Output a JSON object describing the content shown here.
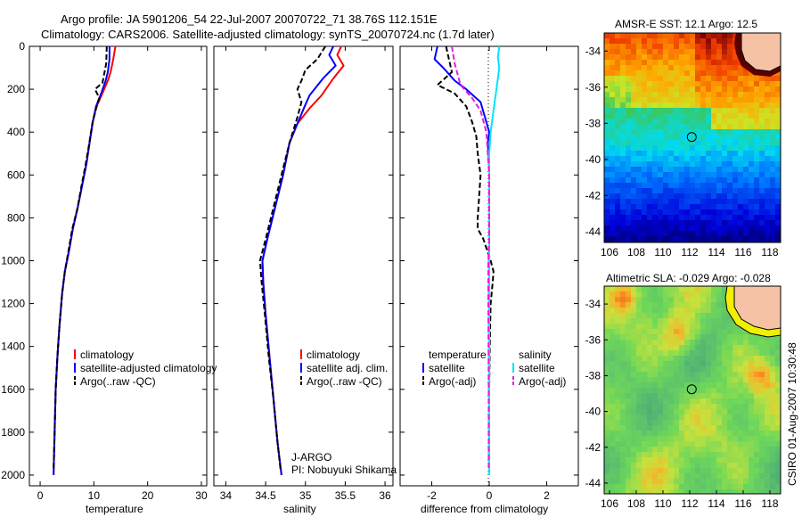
{
  "header": {
    "line1": "Argo profile: JA 5901206_54 22-Jul-2007 20070722_71 38.76S 112.151E",
    "line2": "Climatology: CARS2006. Satellite-adjusted climatology: synTS_20070724.nc (1.7d later)"
  },
  "side_text": "CSIRO 01-Aug-2007 10:30:48",
  "colors": {
    "clim": "#ff0000",
    "sat": "#0000ff",
    "argo": "#000000",
    "cyan": "#00e5ff",
    "magenta": "#e020e0",
    "land": "#f5c2a5"
  },
  "chart_data": [
    {
      "type": "line",
      "id": "temperature",
      "xlabel": "temperature",
      "xlim": [
        -2,
        31
      ],
      "ylim": [
        2050,
        0
      ],
      "xticks": [
        "0",
        "10",
        "20",
        "30"
      ],
      "xtick_values": [
        0,
        10,
        20,
        30
      ],
      "yticks": [
        "0",
        "200",
        "400",
        "600",
        "800",
        "1000",
        "1200",
        "1400",
        "1600",
        "1800",
        "2000"
      ],
      "ytick_values": [
        0,
        200,
        400,
        600,
        800,
        1000,
        1200,
        1400,
        1600,
        1800,
        2000
      ],
      "legend": [
        "climatology",
        "satellite-adjusted climatology",
        "Argo(..raw -QC)"
      ],
      "series": [
        {
          "name": "climatology",
          "style": "solid",
          "color": "clim",
          "points": [
            [
              14.0,
              0
            ],
            [
              13.6,
              60
            ],
            [
              13.1,
              120
            ],
            [
              12.6,
              160
            ],
            [
              11.4,
              230
            ],
            [
              10.5,
              280
            ],
            [
              9.8,
              350
            ],
            [
              9.2,
              450
            ],
            [
              8.6,
              550
            ],
            [
              7.8,
              650
            ],
            [
              7.0,
              750
            ],
            [
              6.1,
              850
            ],
            [
              5.4,
              950
            ],
            [
              4.6,
              1050
            ],
            [
              4.1,
              1150
            ],
            [
              3.6,
              1300
            ],
            [
              3.2,
              1450
            ],
            [
              2.9,
              1600
            ],
            [
              2.7,
              1800
            ],
            [
              2.5,
              2000
            ]
          ]
        },
        {
          "name": "satellite-adjusted climatology",
          "style": "solid",
          "color": "sat",
          "points": [
            [
              12.9,
              0
            ],
            [
              12.9,
              60
            ],
            [
              12.6,
              120
            ],
            [
              12.2,
              160
            ],
            [
              11.2,
              230
            ],
            [
              10.4,
              280
            ],
            [
              9.8,
              350
            ],
            [
              9.2,
              450
            ],
            [
              8.6,
              550
            ],
            [
              7.8,
              650
            ],
            [
              7.0,
              750
            ],
            [
              6.1,
              850
            ],
            [
              5.4,
              950
            ],
            [
              4.6,
              1050
            ],
            [
              4.1,
              1150
            ],
            [
              3.6,
              1300
            ],
            [
              3.2,
              1450
            ],
            [
              2.9,
              1600
            ],
            [
              2.7,
              1800
            ],
            [
              2.5,
              2000
            ]
          ]
        },
        {
          "name": "Argo(..raw -QC)",
          "style": "dash",
          "color": "argo",
          "points": [
            [
              12.4,
              0
            ],
            [
              12.3,
              80
            ],
            [
              11.6,
              170
            ],
            [
              10.2,
              200
            ],
            [
              11.0,
              240
            ],
            [
              10.4,
              290
            ],
            [
              9.7,
              360
            ],
            [
              9.1,
              460
            ],
            [
              8.4,
              560
            ],
            [
              7.7,
              650
            ],
            [
              6.9,
              760
            ],
            [
              6.0,
              850
            ],
            [
              5.3,
              950
            ],
            [
              4.6,
              1050
            ],
            [
              4.1,
              1150
            ],
            [
              3.6,
              1300
            ],
            [
              3.2,
              1450
            ],
            [
              2.9,
              1600
            ],
            [
              2.7,
              1800
            ],
            [
              2.5,
              1980
            ]
          ]
        }
      ]
    },
    {
      "type": "line",
      "id": "salinity",
      "xlabel": "salinity",
      "xlim": [
        33.85,
        36.1
      ],
      "ylim": [
        2050,
        0
      ],
      "xticks": [
        "34",
        "34.5",
        "35",
        "35.5",
        "36"
      ],
      "xtick_values": [
        34,
        34.5,
        35,
        35.5,
        36
      ],
      "legend": [
        "climatology",
        "satellite adj. clim.",
        "Argo(..raw -QC)"
      ],
      "annotation": [
        "J-ARGO",
        "PI: Nobuyuki Shikama"
      ],
      "series": [
        {
          "name": "climatology",
          "style": "solid",
          "color": "clim",
          "points": [
            [
              35.45,
              0
            ],
            [
              35.4,
              40
            ],
            [
              35.48,
              90
            ],
            [
              35.35,
              150
            ],
            [
              35.2,
              230
            ],
            [
              35.05,
              290
            ],
            [
              34.9,
              360
            ],
            [
              34.8,
              450
            ],
            [
              34.72,
              600
            ],
            [
              34.62,
              750
            ],
            [
              34.52,
              900
            ],
            [
              34.46,
              1000
            ],
            [
              34.47,
              1100
            ],
            [
              34.5,
              1250
            ],
            [
              34.55,
              1450
            ],
            [
              34.6,
              1650
            ],
            [
              34.65,
              1850
            ],
            [
              34.7,
              2000
            ]
          ]
        },
        {
          "name": "satellite adj. clim.",
          "style": "solid",
          "color": "sat",
          "points": [
            [
              35.35,
              0
            ],
            [
              35.3,
              40
            ],
            [
              35.38,
              90
            ],
            [
              35.22,
              150
            ],
            [
              35.05,
              230
            ],
            [
              34.98,
              290
            ],
            [
              34.9,
              360
            ],
            [
              34.8,
              450
            ],
            [
              34.72,
              600
            ],
            [
              34.62,
              750
            ],
            [
              34.52,
              900
            ],
            [
              34.46,
              1000
            ],
            [
              34.47,
              1100
            ],
            [
              34.5,
              1250
            ],
            [
              34.55,
              1450
            ],
            [
              34.6,
              1650
            ],
            [
              34.65,
              1850
            ],
            [
              34.7,
              2000
            ]
          ]
        },
        {
          "name": "Argo(..raw -QC)",
          "style": "dash",
          "color": "argo",
          "points": [
            [
              35.25,
              0
            ],
            [
              35.15,
              60
            ],
            [
              35.0,
              110
            ],
            [
              34.95,
              160
            ],
            [
              34.9,
              200
            ],
            [
              34.95,
              260
            ],
            [
              34.9,
              330
            ],
            [
              34.8,
              450
            ],
            [
              34.7,
              600
            ],
            [
              34.6,
              750
            ],
            [
              34.5,
              900
            ],
            [
              34.43,
              1000
            ],
            [
              34.45,
              1100
            ],
            [
              34.49,
              1250
            ],
            [
              34.54,
              1450
            ],
            [
              34.6,
              1650
            ],
            [
              34.65,
              1850
            ],
            [
              34.69,
              1980
            ]
          ]
        }
      ]
    },
    {
      "type": "line",
      "id": "difference",
      "xlabel": "difference from climatology",
      "xlim": [
        -3.1,
        3.1
      ],
      "ylim": [
        2050,
        0
      ],
      "xticks": [
        "-2",
        "0",
        "2"
      ],
      "xtick_values": [
        -2,
        0,
        2
      ],
      "legend_left_title": "temperature",
      "legend_left": [
        "satellite",
        "Argo(-adj)"
      ],
      "legend_right_title": "salinity",
      "legend_right": [
        "satellite",
        "Argo(-adj)"
      ],
      "series": [
        {
          "name": "temperature satellite",
          "style": "solid",
          "color": "sat",
          "points": [
            [
              -1.8,
              0
            ],
            [
              -1.9,
              60
            ],
            [
              -1.6,
              100
            ],
            [
              -1.2,
              160
            ],
            [
              -0.8,
              200
            ],
            [
              -0.3,
              260
            ],
            [
              -0.15,
              330
            ],
            [
              0.0,
              400
            ],
            [
              -0.05,
              450
            ],
            [
              0.0,
              550
            ],
            [
              0.0,
              800
            ],
            [
              0.0,
              1000
            ],
            [
              0.0,
              2000
            ]
          ]
        },
        {
          "name": "temperature Argo(-adj)",
          "style": "dash",
          "color": "argo",
          "points": [
            [
              -1.5,
              0
            ],
            [
              -1.4,
              60
            ],
            [
              -1.3,
              120
            ],
            [
              -1.8,
              180
            ],
            [
              -1.2,
              220
            ],
            [
              -0.8,
              280
            ],
            [
              -0.6,
              350
            ],
            [
              -0.45,
              420
            ],
            [
              -0.4,
              500
            ],
            [
              -0.3,
              600
            ],
            [
              -0.35,
              700
            ],
            [
              -0.4,
              800
            ],
            [
              -0.4,
              850
            ],
            [
              -0.2,
              900
            ],
            [
              0.05,
              1000
            ],
            [
              0.15,
              1050
            ],
            [
              0.12,
              1100
            ],
            [
              0.05,
              1200
            ],
            [
              0.02,
              1400
            ],
            [
              0.0,
              1600
            ],
            [
              0.0,
              1980
            ]
          ]
        },
        {
          "name": "salinity satellite",
          "style": "solid",
          "color": "cyan",
          "points": [
            [
              0.35,
              0
            ],
            [
              0.3,
              50
            ],
            [
              0.35,
              100
            ],
            [
              0.25,
              200
            ],
            [
              0.15,
              300
            ],
            [
              0.05,
              400
            ],
            [
              0.0,
              500
            ],
            [
              0.0,
              2000
            ]
          ]
        },
        {
          "name": "salinity Argo(-adj)",
          "style": "dash",
          "color": "magenta",
          "points": [
            [
              -1.3,
              0
            ],
            [
              -1.2,
              80
            ],
            [
              -1.0,
              180
            ],
            [
              -0.6,
              240
            ],
            [
              -0.3,
              300
            ],
            [
              -0.1,
              400
            ],
            [
              0.0,
              600
            ],
            [
              0.0,
              900
            ],
            [
              -0.03,
              1000
            ],
            [
              -0.03,
              1200
            ],
            [
              -0.02,
              1600
            ],
            [
              -0.02,
              1980
            ]
          ]
        }
      ]
    },
    {
      "type": "heatmap",
      "id": "sst_map",
      "title": "AMSR-E SST: 12.1 Argo: 12.5",
      "xticks": [
        "106",
        "108",
        "110",
        "112",
        "114",
        "116",
        "118"
      ],
      "yticks": [
        "-34",
        "-36",
        "-38",
        "-40",
        "-42",
        "-44"
      ],
      "xlim": [
        105.6,
        118.8
      ],
      "ylim": [
        -44.6,
        -33.0
      ],
      "argo_position": [
        112.151,
        -38.76
      ]
    },
    {
      "type": "heatmap",
      "id": "sla_map",
      "title": "Altimetric SLA: -0.029 Argo: -0.028",
      "xticks": [
        "106",
        "108",
        "110",
        "112",
        "114",
        "116",
        "118"
      ],
      "yticks": [
        "-34",
        "-36",
        "-38",
        "-40",
        "-42",
        "-44"
      ],
      "xlim": [
        105.6,
        118.8
      ],
      "ylim": [
        -44.6,
        -33.0
      ],
      "argo_position": [
        112.151,
        -38.76
      ]
    }
  ]
}
